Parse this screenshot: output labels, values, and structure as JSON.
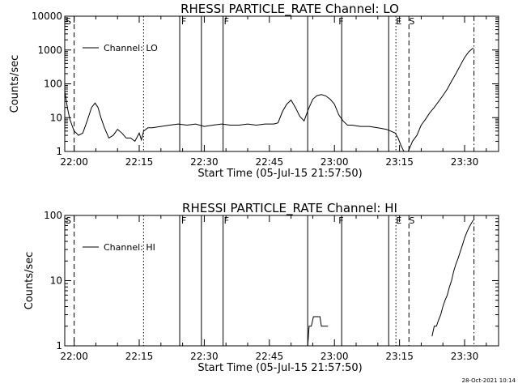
{
  "footer": {
    "timestamp": "28-Oct-2021 10:14"
  },
  "chart_data": [
    {
      "type": "line",
      "title": "RHESSI PARTICLE_RATE Channel: LO",
      "xlabel": "Start Time (05-Jul-15 21:57:50)",
      "ylabel": "Counts/sec",
      "y_scale": "log",
      "ylim": [
        1,
        10000
      ],
      "xlim": [
        "21:57:50",
        "23:37:50"
      ],
      "x_ticks": [
        "22:00",
        "22:15",
        "22:30",
        "22:45",
        "23:00",
        "23:15",
        "23:30"
      ],
      "y_ticks": [
        "1",
        "10",
        "100",
        "1000",
        "10000"
      ],
      "legend": {
        "position": "top-left",
        "entries": [
          "Channel: LO"
        ]
      },
      "flags": [
        {
          "label": "S",
          "time": "21:57:50"
        },
        {
          "label": "F",
          "time": "22:24:30"
        },
        {
          "label": "F",
          "time": "22:34:20"
        },
        {
          "label": "F",
          "time": "23:00:45"
        },
        {
          "label": "E",
          "time": "23:14:00"
        },
        {
          "label": "S",
          "time": "23:17:00"
        }
      ],
      "vertical_lines": [
        {
          "time": "22:00:00",
          "style": "dashed"
        },
        {
          "time": "22:16:00",
          "style": "dotted"
        },
        {
          "time": "22:24:20",
          "style": "solid"
        },
        {
          "time": "22:29:20",
          "style": "solid"
        },
        {
          "time": "22:34:20",
          "style": "solid"
        },
        {
          "time": "22:53:50",
          "style": "solid"
        },
        {
          "time": "23:01:40",
          "style": "solid"
        },
        {
          "time": "23:12:30",
          "style": "solid"
        },
        {
          "time": "23:14:10",
          "style": "dotted"
        },
        {
          "time": "23:17:10",
          "style": "dashed"
        },
        {
          "time": "23:32:10",
          "style": "dashdot"
        }
      ],
      "series": [
        {
          "name": "Channel: LO",
          "x": [
            "21:57:50",
            "21:58:30",
            "21:59:00",
            "21:59:30",
            "22:00:00",
            "22:00:30",
            "22:01:00",
            "22:02:00",
            "22:03:00",
            "22:04:00",
            "22:04:50",
            "22:05:30",
            "22:06:10",
            "22:07:00",
            "22:08:00",
            "22:09:00",
            "22:10:00",
            "22:11:00",
            "22:12:00",
            "22:13:00",
            "22:14:00",
            "22:15:00",
            "22:15:30",
            "22:16:00",
            "22:17:00",
            "22:18:00",
            "22:20:00",
            "22:22:00",
            "22:24:00",
            "22:26:00",
            "22:28:00",
            "22:30:00",
            "22:32:00",
            "22:34:00",
            "22:36:00",
            "22:38:00",
            "22:40:00",
            "22:42:00",
            "22:44:00",
            "22:46:00",
            "22:47:00",
            "22:48:00",
            "22:49:00",
            "22:50:00",
            "22:51:00",
            "22:52:00",
            "22:53:00",
            "22:54:00",
            "22:55:00",
            "22:56:00",
            "22:57:00",
            "22:58:00",
            "22:59:00",
            "23:00:00",
            "23:01:00",
            "23:02:00",
            "23:03:00",
            "23:04:00",
            "23:06:00",
            "23:08:00",
            "23:10:00",
            "23:12:00",
            "23:13:00",
            "23:14:00",
            "23:14:40",
            "23:15:20",
            "23:16:00",
            "23:16:30",
            "23:17:00",
            "23:18:00",
            "23:19:00",
            "23:20:00",
            "23:21:00",
            "23:22:00",
            "23:23:00",
            "23:24:00",
            "23:25:00",
            "23:26:00",
            "23:27:00",
            "23:28:00",
            "23:29:00",
            "23:30:00",
            "23:31:00",
            "23:32:00"
          ],
          "y": [
            60,
            18,
            9,
            6,
            4,
            3.5,
            3,
            3.5,
            8,
            20,
            27,
            20,
            10,
            5,
            2.5,
            3,
            4.5,
            3.5,
            2.5,
            2.5,
            2,
            3.5,
            2.2,
            4,
            5,
            5,
            5.5,
            6,
            6.5,
            6,
            6.5,
            5.5,
            6,
            6.5,
            6,
            6,
            6.5,
            6,
            6.5,
            6.5,
            7,
            15,
            25,
            33,
            20,
            11,
            8,
            18,
            35,
            45,
            48,
            44,
            35,
            25,
            12,
            8,
            6,
            6,
            5.5,
            5.5,
            5,
            4.5,
            4,
            3.5,
            2.5,
            1.5,
            1,
            1,
            1,
            2,
            3,
            6,
            9,
            14,
            20,
            30,
            45,
            70,
            120,
            200,
            350,
            600,
            900,
            1150
          ]
        }
      ]
    },
    {
      "type": "line",
      "title": "RHESSI PARTICLE_RATE Channel: HI",
      "xlabel": "Start Time (05-Jul-15 21:57:50)",
      "ylabel": "Counts/sec",
      "y_scale": "log",
      "ylim": [
        1,
        100
      ],
      "xlim": [
        "21:57:50",
        "23:37:50"
      ],
      "x_ticks": [
        "22:00",
        "22:15",
        "22:30",
        "22:45",
        "23:00",
        "23:15",
        "23:30"
      ],
      "y_ticks": [
        "1",
        "10",
        "100"
      ],
      "legend": {
        "position": "top-left",
        "entries": [
          "Channel: HI"
        ]
      },
      "flags": [
        {
          "label": "S",
          "time": "21:57:50"
        },
        {
          "label": "F",
          "time": "22:24:30"
        },
        {
          "label": "F",
          "time": "22:34:20"
        },
        {
          "label": "F",
          "time": "23:00:45"
        },
        {
          "label": "E",
          "time": "23:14:00"
        },
        {
          "label": "S",
          "time": "23:17:00"
        }
      ],
      "vertical_lines": [
        {
          "time": "22:00:00",
          "style": "dashed"
        },
        {
          "time": "22:16:00",
          "style": "dotted"
        },
        {
          "time": "22:24:20",
          "style": "solid"
        },
        {
          "time": "22:29:20",
          "style": "solid"
        },
        {
          "time": "22:34:20",
          "style": "solid"
        },
        {
          "time": "22:53:50",
          "style": "solid"
        },
        {
          "time": "23:01:40",
          "style": "solid"
        },
        {
          "time": "23:12:30",
          "style": "solid"
        },
        {
          "time": "23:14:10",
          "style": "dotted"
        },
        {
          "time": "23:17:10",
          "style": "dashed"
        },
        {
          "time": "23:32:10",
          "style": "dashdot"
        }
      ],
      "series": [
        {
          "name": "Channel: HI",
          "segments": [
            {
              "x": [
                "22:53:50",
                "22:54:10",
                "22:54:40",
                "22:55:10",
                "22:56:40",
                "22:57:00",
                "22:57:20",
                "22:58:30"
              ],
              "y": [
                1,
                2,
                2,
                2.8,
                2.8,
                2,
                2,
                2
              ]
            },
            {
              "x": [
                "23:22:30",
                "23:23:00",
                "23:23:30",
                "23:24:00",
                "23:24:30",
                "23:25:00",
                "23:25:30",
                "23:26:00",
                "23:26:30",
                "23:27:00",
                "23:27:30",
                "23:28:00",
                "23:28:30",
                "23:29:00",
                "23:29:30",
                "23:30:00",
                "23:30:30",
                "23:31:00",
                "23:31:30",
                "23:32:00"
              ],
              "y": [
                1.4,
                2,
                2,
                2.5,
                3,
                4,
                5,
                6,
                8,
                10,
                14,
                18,
                22,
                28,
                35,
                45,
                55,
                65,
                75,
                85
              ]
            }
          ]
        }
      ]
    }
  ]
}
